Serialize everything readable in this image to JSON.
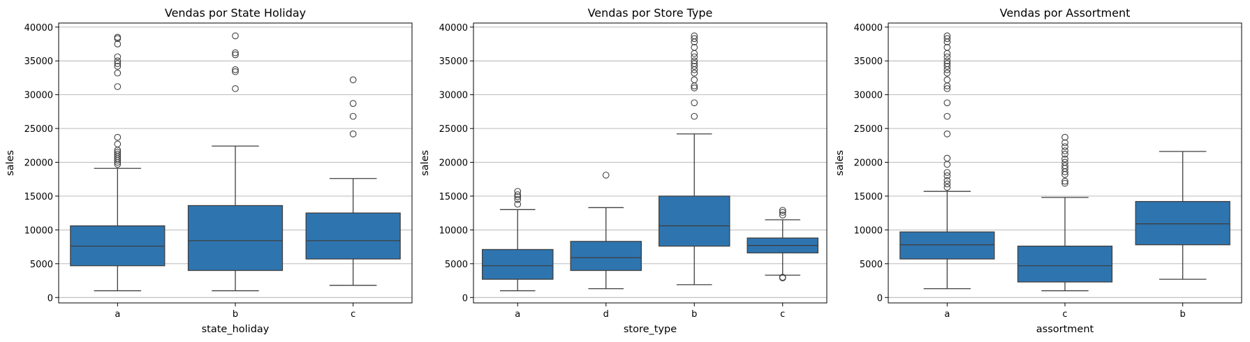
{
  "style": {
    "box_color": "#2e75b0",
    "line_color": "#3f3f3f",
    "grid_color": "#b0b0b0",
    "background": "#ffffff"
  },
  "chart_data": [
    {
      "type": "box",
      "title": "Vendas por State Holiday",
      "xlabel": "state_holiday",
      "ylabel": "sales",
      "ylim": [
        -800,
        40600
      ],
      "yticks": [
        0,
        5000,
        10000,
        15000,
        20000,
        25000,
        30000,
        35000,
        40000
      ],
      "grid": "y",
      "categories": [
        "a",
        "b",
        "c"
      ],
      "boxes": [
        {
          "category": "a",
          "whisker_low": 1000,
          "q1": 4700,
          "median": 7600,
          "q3": 10600,
          "whisker_high": 19100,
          "outliers": [
            19700,
            20000,
            20300,
            20600,
            20900,
            21200,
            21500,
            21800,
            22700,
            23700,
            31200,
            33200,
            34200,
            34600,
            35000,
            35600,
            37500,
            38300,
            38500
          ]
        },
        {
          "category": "b",
          "whisker_low": 1000,
          "q1": 4000,
          "median": 8400,
          "q3": 13600,
          "whisker_high": 22400,
          "outliers": [
            30900,
            33400,
            33700,
            35900,
            36200,
            38700
          ]
        },
        {
          "category": "c",
          "whisker_low": 1800,
          "q1": 5700,
          "median": 8400,
          "q3": 12500,
          "whisker_high": 17600,
          "outliers": [
            24200,
            26800,
            28700,
            32200
          ]
        }
      ]
    },
    {
      "type": "box",
      "title": "Vendas por Store Type",
      "xlabel": "store_type",
      "ylabel": "sales",
      "ylim": [
        -800,
        40600
      ],
      "yticks": [
        0,
        5000,
        10000,
        15000,
        20000,
        25000,
        30000,
        35000,
        40000
      ],
      "grid": "y",
      "categories": [
        "a",
        "d",
        "b",
        "c"
      ],
      "boxes": [
        {
          "category": "a",
          "whisker_low": 1000,
          "q1": 2700,
          "median": 4700,
          "q3": 7100,
          "whisker_high": 13000,
          "outliers": [
            13800,
            14500,
            14900,
            15200,
            15700
          ]
        },
        {
          "category": "d",
          "whisker_low": 1300,
          "q1": 4000,
          "median": 5900,
          "q3": 8300,
          "whisker_high": 13300,
          "outliers": [
            18100
          ]
        },
        {
          "category": "b",
          "whisker_low": 1900,
          "q1": 7600,
          "median": 10600,
          "q3": 15000,
          "whisker_high": 24200,
          "outliers": [
            26800,
            28800,
            31000,
            31300,
            32200,
            33200,
            33700,
            34200,
            34600,
            35000,
            35600,
            36100,
            37000,
            37800,
            38300,
            38700
          ]
        },
        {
          "category": "c",
          "whisker_low": 3300,
          "q1": 6600,
          "median": 7700,
          "q3": 8800,
          "whisker_high": 11500,
          "outliers": [
            2900,
            3000,
            12200,
            12600,
            12900
          ]
        }
      ]
    },
    {
      "type": "box",
      "title": "Vendas por Assortment",
      "xlabel": "assortment",
      "ylabel": "sales",
      "ylim": [
        -800,
        40600
      ],
      "yticks": [
        0,
        5000,
        10000,
        15000,
        20000,
        25000,
        30000,
        35000,
        40000
      ],
      "grid": "y",
      "categories": [
        "a",
        "c",
        "b"
      ],
      "boxes": [
        {
          "category": "a",
          "whisker_low": 1300,
          "q1": 5700,
          "median": 7800,
          "q3": 9700,
          "whisker_high": 15700,
          "outliers": [
            16300,
            16800,
            17300,
            18000,
            18500,
            19700,
            20600,
            24200,
            26800,
            28800,
            30900,
            31300,
            32200,
            33200,
            33700,
            34200,
            34600,
            35000,
            35600,
            36100,
            37000,
            37800,
            38300,
            38700
          ]
        },
        {
          "category": "c",
          "whisker_low": 1000,
          "q1": 2300,
          "median": 4700,
          "q3": 7600,
          "whisker_high": 14800,
          "outliers": [
            16900,
            17200,
            18200,
            18600,
            19100,
            19500,
            20000,
            20500,
            21200,
            21700,
            22300,
            22900,
            23700
          ]
        },
        {
          "category": "b",
          "whisker_low": 2700,
          "q1": 7800,
          "median": 10900,
          "q3": 14200,
          "whisker_high": 21600,
          "outliers": []
        }
      ]
    }
  ]
}
